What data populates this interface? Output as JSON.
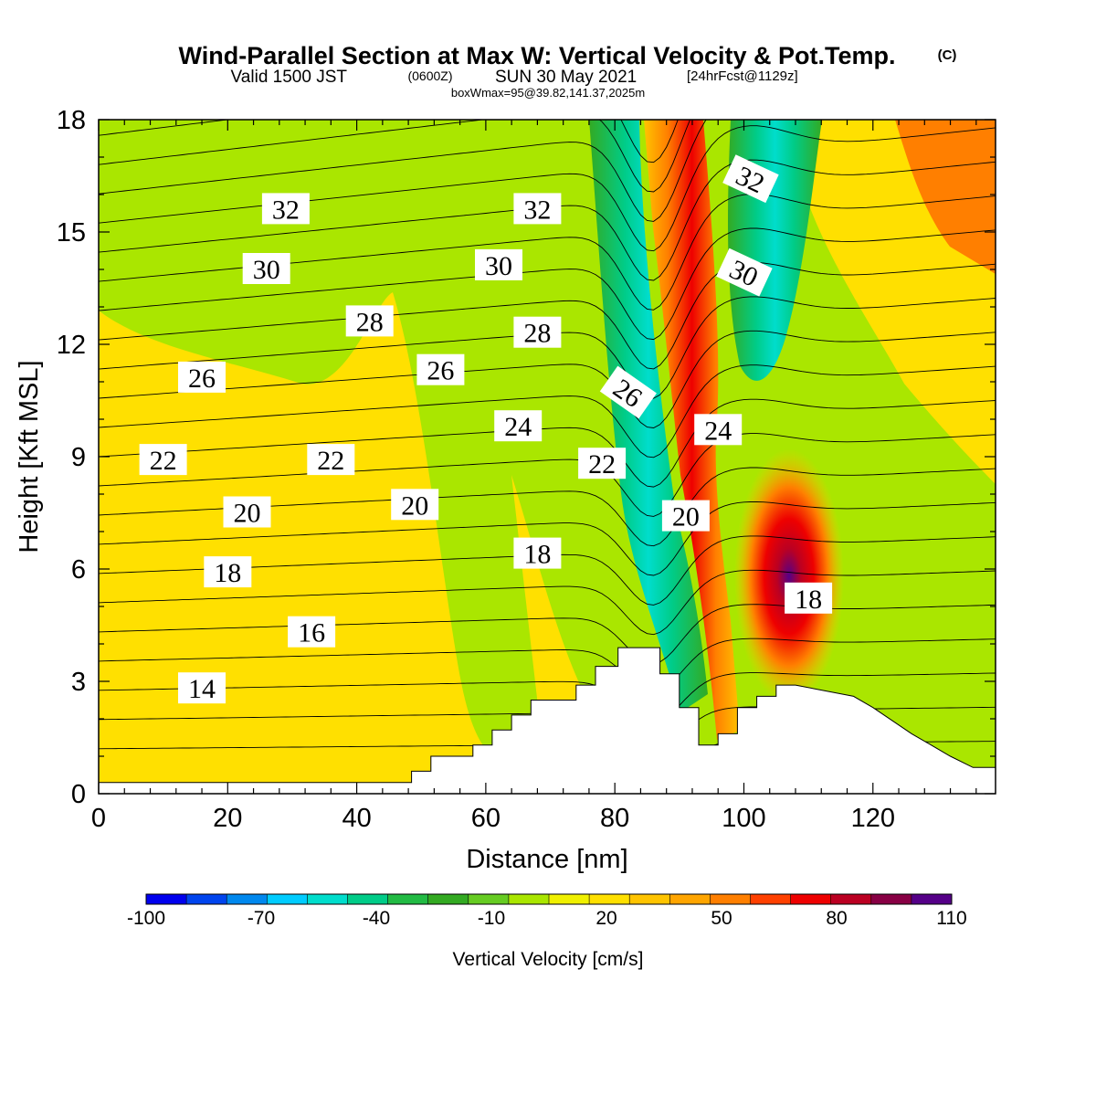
{
  "chart_data": {
    "type": "heatmap",
    "title": "Wind-Parallel Section at Max W: Vertical Velocity & Pot.Temp.",
    "title_mark": "(C)",
    "subtitle_main": "Valid 1500 JST",
    "subtitle_utc": "(0600Z)",
    "subtitle_date": "SUN 30 May 2021",
    "subtitle_fcst": "[24hrFcst@1129z]",
    "subtitle2": "boxWmax=95@39.82,141.37,2025m",
    "xlabel": "Distance [nm]",
    "ylabel": "Height [Kft MSL]",
    "xlim": [
      0,
      139
    ],
    "ylim": [
      0,
      18
    ],
    "x_ticks": [
      0,
      20,
      40,
      60,
      80,
      100,
      120
    ],
    "y_ticks": [
      0,
      3,
      6,
      9,
      12,
      15,
      18
    ],
    "colorbar": {
      "label": "Vertical Velocity [cm/s]",
      "min": -100,
      "max": 110,
      "step": 10,
      "tick_labels": [
        -100,
        -70,
        -40,
        -10,
        20,
        50,
        80,
        110
      ],
      "colors": [
        "#0000ee",
        "#0044ee",
        "#0088ee",
        "#00ccff",
        "#00ddcc",
        "#00cc88",
        "#22bb44",
        "#33aa22",
        "#66cc22",
        "#aae600",
        "#f0f000",
        "#ffe000",
        "#ffc400",
        "#ffa500",
        "#ff7f00",
        "#ff4000",
        "#ee0000",
        "#bb0022",
        "#880044",
        "#550088"
      ]
    },
    "velocity_features": [
      {
        "name": "background",
        "value": -10
      },
      {
        "name": "flat-weak-ascent",
        "value": 10
      },
      {
        "name": "upper-plateau",
        "value": -20
      },
      {
        "name": "mountain-wave-downdraft",
        "value": -60
      },
      {
        "name": "mountain-wave-updraft",
        "value": 75
      },
      {
        "name": "upper-downdraft",
        "value": -55
      },
      {
        "name": "lower-updraft-max",
        "value": 95
      }
    ],
    "theta_contours": {
      "units": "degC",
      "levels": [
        13,
        14,
        15,
        16,
        17,
        18,
        19,
        20,
        21,
        22,
        23,
        24,
        25,
        26,
        27,
        28,
        29,
        30,
        31,
        32,
        33,
        34
      ],
      "labels": [
        {
          "text": "32",
          "x": 29,
          "y": 15.6,
          "rotate": 0
        },
        {
          "text": "30",
          "x": 26,
          "y": 14.0,
          "rotate": 0
        },
        {
          "text": "28",
          "x": 42,
          "y": 12.6,
          "rotate": 0
        },
        {
          "text": "26",
          "x": 16,
          "y": 11.1,
          "rotate": 0
        },
        {
          "text": "22",
          "x": 10,
          "y": 8.9,
          "rotate": 0
        },
        {
          "text": "20",
          "x": 23,
          "y": 7.5,
          "rotate": 0
        },
        {
          "text": "18",
          "x": 20,
          "y": 5.9,
          "rotate": 0
        },
        {
          "text": "16",
          "x": 33,
          "y": 4.3,
          "rotate": 0
        },
        {
          "text": "14",
          "x": 16,
          "y": 2.8,
          "rotate": 0
        },
        {
          "text": "22",
          "x": 36,
          "y": 8.9,
          "rotate": 0
        },
        {
          "text": "20",
          "x": 49,
          "y": 7.7,
          "rotate": 0
        },
        {
          "text": "26",
          "x": 53,
          "y": 11.3,
          "rotate": 0
        },
        {
          "text": "30",
          "x": 62,
          "y": 14.1,
          "rotate": 0
        },
        {
          "text": "32",
          "x": 68,
          "y": 15.6,
          "rotate": 0
        },
        {
          "text": "28",
          "x": 68,
          "y": 12.3,
          "rotate": 0
        },
        {
          "text": "24",
          "x": 65,
          "y": 9.8,
          "rotate": 0
        },
        {
          "text": "18",
          "x": 68,
          "y": 6.4,
          "rotate": 0
        },
        {
          "text": "22",
          "x": 78,
          "y": 8.8,
          "rotate": 0
        },
        {
          "text": "26",
          "x": 82,
          "y": 10.7,
          "rotate": 35
        },
        {
          "text": "32",
          "x": 101,
          "y": 16.4,
          "rotate": 25
        },
        {
          "text": "30",
          "x": 100,
          "y": 13.9,
          "rotate": 25
        },
        {
          "text": "24",
          "x": 96,
          "y": 9.7,
          "rotate": 0
        },
        {
          "text": "20",
          "x": 91,
          "y": 7.4,
          "rotate": 0
        },
        {
          "text": "18",
          "x": 110,
          "y": 5.2,
          "rotate": 0
        }
      ]
    },
    "terrain": {
      "x": [
        0,
        48.5,
        48.5,
        51.5,
        51.5,
        58,
        58,
        61,
        61,
        64,
        64,
        67,
        67,
        74,
        74,
        77,
        77,
        80.5,
        80.5,
        87,
        87,
        90,
        90,
        93,
        93,
        96,
        96,
        99,
        99,
        102,
        102,
        105,
        105,
        108,
        108,
        117,
        117,
        120,
        120,
        126,
        126,
        129,
        129,
        132,
        132,
        135.5,
        135.5,
        139
      ],
      "height": [
        0.3,
        0.3,
        0.6,
        0.6,
        1.0,
        1.0,
        1.3,
        1.3,
        1.7,
        1.7,
        2.1,
        2.1,
        2.5,
        2.5,
        2.9,
        2.9,
        3.4,
        3.4,
        3.9,
        3.9,
        3.2,
        3.2,
        2.3,
        2.3,
        1.3,
        1.3,
        1.6,
        1.6,
        2.3,
        2.3,
        2.6,
        2.6,
        2.9,
        2.9,
        2.9,
        2.6,
        2.6,
        2.3,
        2.3,
        1.6,
        1.6,
        1.3,
        1.3,
        1.0,
        1.0,
        0.7,
        0.7,
        0.7
      ]
    }
  }
}
